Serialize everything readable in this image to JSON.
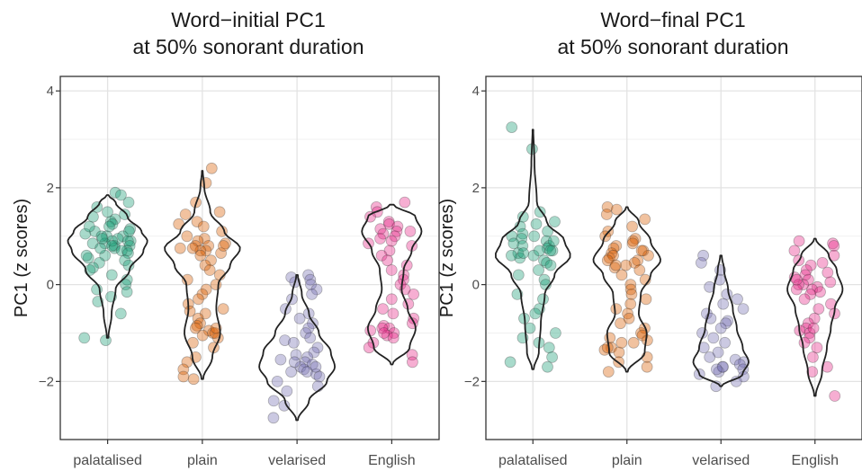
{
  "chart_data": [
    {
      "type": "violin",
      "title": "Word−initial PC1\nat 50% sonorant duration",
      "ylabel": "PC1 (z scores)",
      "xlabel": "",
      "ylim": [
        -3.2,
        4.3
      ],
      "yticks": [
        -2,
        0,
        2,
        4
      ],
      "ytick_labels": [
        "−2",
        "0",
        "2",
        "4"
      ],
      "grid": true,
      "categories": [
        "palatalised",
        "plain",
        "velarised",
        "English"
      ],
      "series": [
        {
          "color": "#1b9e77",
          "violin": {
            "min": -1.1,
            "max": 1.85,
            "profile": [
              [
                -1.1,
                0.02
              ],
              [
                -0.6,
                0.1
              ],
              [
                -0.1,
                0.2
              ],
              [
                0.3,
                0.55
              ],
              [
                0.7,
                0.9
              ],
              [
                0.9,
                1.0
              ],
              [
                1.1,
                0.85
              ],
              [
                1.4,
                0.5
              ],
              [
                1.7,
                0.2
              ],
              [
                1.85,
                0.02
              ]
            ]
          },
          "points": [
            1.9,
            1.85,
            1.7,
            1.6,
            1.5,
            1.45,
            1.4,
            1.35,
            1.3,
            1.25,
            1.2,
            1.15,
            1.1,
            1.05,
            1.0,
            1.0,
            0.95,
            0.9,
            0.9,
            0.85,
            0.8,
            0.8,
            0.75,
            0.7,
            0.7,
            0.65,
            0.6,
            0.55,
            0.5,
            0.45,
            0.4,
            0.35,
            0.3,
            0.2,
            0.1,
            0.0,
            -0.1,
            -0.15,
            -0.25,
            -0.35,
            -0.6,
            -1.1,
            -1.15,
            1.0,
            0.9,
            0.85,
            0.8,
            0.75,
            0.6,
            1.1,
            1.2,
            0.95
          ]
        },
        {
          "color": "#d95f02",
          "violin": {
            "min": -1.95,
            "max": 2.35,
            "profile": [
              [
                -1.95,
                0.02
              ],
              [
                -1.5,
                0.25
              ],
              [
                -1.0,
                0.45
              ],
              [
                -0.5,
                0.35
              ],
              [
                0.0,
                0.4
              ],
              [
                0.4,
                0.7
              ],
              [
                0.75,
                0.95
              ],
              [
                1.1,
                0.55
              ],
              [
                1.5,
                0.2
              ],
              [
                2.0,
                0.05
              ],
              [
                2.35,
                0.01
              ]
            ]
          },
          "points": [
            2.4,
            2.1,
            1.7,
            1.5,
            1.45,
            1.3,
            1.25,
            1.2,
            1.1,
            1.0,
            0.95,
            0.9,
            0.85,
            0.8,
            0.8,
            0.75,
            0.7,
            0.7,
            0.65,
            0.6,
            0.5,
            0.4,
            0.3,
            0.2,
            0.1,
            0.0,
            -0.1,
            -0.2,
            -0.3,
            -0.4,
            -0.5,
            -0.55,
            -0.6,
            -0.7,
            -0.8,
            -0.85,
            -0.9,
            -0.95,
            -1.0,
            -1.05,
            -1.1,
            -1.2,
            -1.3,
            -1.5,
            -1.6,
            -1.75,
            -1.9,
            -1.95,
            0.8,
            0.75,
            -1.0,
            -0.9
          ]
        },
        {
          "color": "#7570b3",
          "violin": {
            "min": -2.8,
            "max": 0.2,
            "profile": [
              [
                -2.8,
                0.02
              ],
              [
                -2.4,
                0.3
              ],
              [
                -2.0,
                0.75
              ],
              [
                -1.7,
                0.95
              ],
              [
                -1.4,
                0.85
              ],
              [
                -1.0,
                0.55
              ],
              [
                -0.6,
                0.3
              ],
              [
                -0.2,
                0.12
              ],
              [
                0.2,
                0.02
              ]
            ]
          },
          "points": [
            0.2,
            0.15,
            0.1,
            0.05,
            0.0,
            -0.1,
            -0.2,
            -0.3,
            -0.5,
            -0.6,
            -0.7,
            -0.8,
            -0.9,
            -1.0,
            -1.1,
            -1.15,
            -1.2,
            -1.3,
            -1.4,
            -1.45,
            -1.5,
            -1.55,
            -1.6,
            -1.65,
            -1.7,
            -1.75,
            -1.8,
            -1.85,
            -1.9,
            -2.0,
            -2.1,
            -2.2,
            -2.4,
            -2.5,
            -2.75,
            -1.7,
            -1.6,
            -1.8
          ]
        },
        {
          "color": "#e7298a",
          "violin": {
            "min": -1.65,
            "max": 1.65,
            "profile": [
              [
                -1.65,
                0.02
              ],
              [
                -1.3,
                0.45
              ],
              [
                -0.9,
                0.6
              ],
              [
                -0.5,
                0.4
              ],
              [
                -0.1,
                0.25
              ],
              [
                0.3,
                0.3
              ],
              [
                0.7,
                0.5
              ],
              [
                1.1,
                0.75
              ],
              [
                1.4,
                0.6
              ],
              [
                1.65,
                0.05
              ]
            ]
          },
          "points": [
            1.7,
            1.6,
            1.5,
            1.4,
            1.3,
            1.25,
            1.2,
            1.15,
            1.1,
            1.05,
            1.0,
            0.95,
            0.9,
            0.85,
            0.8,
            0.7,
            0.6,
            0.5,
            0.4,
            0.3,
            0.2,
            0.1,
            0.0,
            -0.1,
            -0.2,
            -0.3,
            -0.4,
            -0.5,
            -0.6,
            -0.7,
            -0.8,
            -0.85,
            -0.9,
            -0.95,
            -1.0,
            -1.05,
            -1.1,
            -1.2,
            -1.3,
            -1.45,
            -1.6,
            1.1,
            -0.9,
            -1.0
          ]
        }
      ]
    },
    {
      "type": "violin",
      "title": "Word−final PC1\nat 50% sonorant duration",
      "ylabel": "PC1 (z scores)",
      "xlabel": "",
      "ylim": [
        -3.2,
        4.3
      ],
      "yticks": [
        -2,
        0,
        2,
        4
      ],
      "ytick_labels": [
        "−2",
        "0",
        "2",
        "4"
      ],
      "grid": true,
      "categories": [
        "palatalised",
        "plain",
        "velarised",
        "English"
      ],
      "series": [
        {
          "color": "#1b9e77",
          "violin": {
            "min": -1.75,
            "max": 3.2,
            "profile": [
              [
                -1.75,
                0.02
              ],
              [
                -1.4,
                0.15
              ],
              [
                -0.8,
                0.2
              ],
              [
                -0.2,
                0.3
              ],
              [
                0.2,
                0.55
              ],
              [
                0.6,
                0.95
              ],
              [
                0.9,
                0.8
              ],
              [
                1.3,
                0.35
              ],
              [
                1.7,
                0.1
              ],
              [
                2.5,
                0.04
              ],
              [
                3.2,
                0.01
              ]
            ]
          },
          "points": [
            3.25,
            2.8,
            1.5,
            1.4,
            1.3,
            1.25,
            1.2,
            1.1,
            1.05,
            1.0,
            0.95,
            0.9,
            0.85,
            0.8,
            0.75,
            0.7,
            0.7,
            0.65,
            0.6,
            0.55,
            0.5,
            0.45,
            0.4,
            0.3,
            0.2,
            0.1,
            0.0,
            -0.2,
            -0.3,
            -0.5,
            -0.6,
            -0.7,
            -0.9,
            -1.0,
            -1.1,
            -1.2,
            -1.3,
            -1.5,
            -1.6,
            -1.7,
            0.8,
            0.7,
            0.6,
            0.9,
            1.0,
            0.65
          ]
        },
        {
          "color": "#d95f02",
          "violin": {
            "min": -1.8,
            "max": 1.6,
            "profile": [
              [
                -1.8,
                0.02
              ],
              [
                -1.4,
                0.45
              ],
              [
                -1.0,
                0.5
              ],
              [
                -0.6,
                0.3
              ],
              [
                -0.2,
                0.35
              ],
              [
                0.2,
                0.6
              ],
              [
                0.5,
                0.85
              ],
              [
                0.9,
                0.6
              ],
              [
                1.3,
                0.3
              ],
              [
                1.6,
                0.02
              ]
            ]
          },
          "points": [
            1.6,
            1.55,
            1.45,
            1.35,
            1.2,
            1.1,
            1.0,
            0.95,
            0.9,
            0.85,
            0.8,
            0.75,
            0.7,
            0.65,
            0.6,
            0.55,
            0.5,
            0.45,
            0.4,
            0.35,
            0.3,
            0.2,
            0.1,
            0.0,
            -0.1,
            -0.2,
            -0.3,
            -0.4,
            -0.5,
            -0.6,
            -0.7,
            -0.8,
            -0.9,
            -1.0,
            -1.05,
            -1.1,
            -1.15,
            -1.2,
            -1.3,
            -1.35,
            -1.4,
            -1.5,
            -1.6,
            -1.7,
            -1.8,
            0.6,
            0.5,
            0.4,
            0.7,
            -1.2,
            -1.3
          ]
        },
        {
          "color": "#7570b3",
          "violin": {
            "min": -2.1,
            "max": 0.6,
            "profile": [
              [
                -2.1,
                0.02
              ],
              [
                -1.85,
                0.55
              ],
              [
                -1.6,
                0.7
              ],
              [
                -1.3,
                0.55
              ],
              [
                -0.9,
                0.4
              ],
              [
                -0.5,
                0.3
              ],
              [
                -0.1,
                0.18
              ],
              [
                0.3,
                0.08
              ],
              [
                0.6,
                0.02
              ]
            ]
          },
          "points": [
            0.6,
            0.45,
            0.3,
            0.1,
            -0.05,
            -0.2,
            -0.3,
            -0.4,
            -0.5,
            -0.6,
            -0.7,
            -0.75,
            -0.8,
            -0.9,
            -1.0,
            -1.1,
            -1.2,
            -1.3,
            -1.4,
            -1.5,
            -1.55,
            -1.6,
            -1.65,
            -1.7,
            -1.75,
            -1.8,
            -1.85,
            -1.9,
            -2.0,
            -2.1,
            -1.7,
            -1.75
          ]
        },
        {
          "color": "#e7298a",
          "violin": {
            "min": -2.3,
            "max": 0.95,
            "profile": [
              [
                -2.3,
                0.02
              ],
              [
                -1.8,
                0.18
              ],
              [
                -1.3,
                0.3
              ],
              [
                -0.9,
                0.4
              ],
              [
                -0.5,
                0.5
              ],
              [
                -0.1,
                0.7
              ],
              [
                0.3,
                0.55
              ],
              [
                0.6,
                0.35
              ],
              [
                0.95,
                0.02
              ]
            ]
          },
          "points": [
            0.9,
            0.85,
            0.8,
            0.7,
            0.6,
            0.5,
            0.45,
            0.4,
            0.3,
            0.25,
            0.2,
            0.15,
            0.1,
            0.05,
            0.0,
            -0.05,
            -0.1,
            -0.15,
            -0.2,
            -0.3,
            -0.4,
            -0.5,
            -0.6,
            -0.7,
            -0.8,
            -0.9,
            -0.95,
            -1.0,
            -1.1,
            -1.2,
            -1.3,
            -1.5,
            -1.7,
            -1.8,
            -2.3,
            0.0,
            -0.1,
            0.1,
            -0.9
          ]
        }
      ]
    }
  ]
}
